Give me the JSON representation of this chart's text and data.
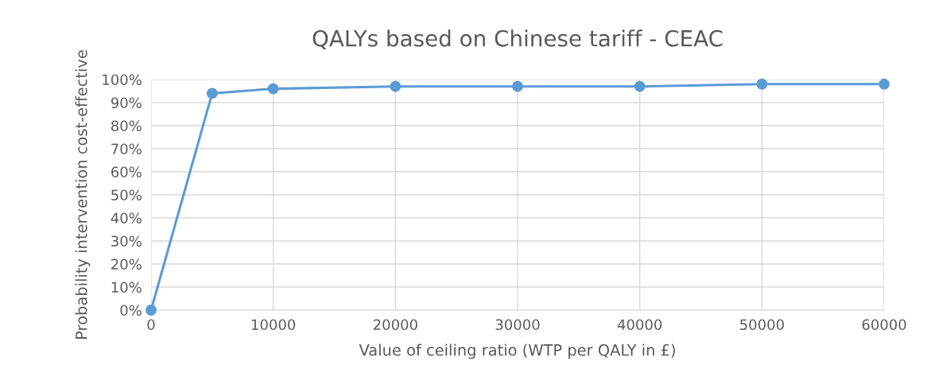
{
  "chart_data": {
    "type": "line",
    "title": "QALYs based on Chinese tariff - CEAC",
    "xlabel": "Value of ceiling ratio (WTP per QALY in £)",
    "ylabel": "Probability intervention cost-effective",
    "x": [
      0,
      5000,
      10000,
      20000,
      30000,
      40000,
      50000,
      60000
    ],
    "series": [
      {
        "color": "#5b9bd5",
        "values": [
          0,
          94,
          96,
          97,
          97,
          97,
          98,
          98
        ]
      }
    ],
    "xlim": [
      0,
      60000
    ],
    "xticks": [
      0,
      10000,
      20000,
      30000,
      40000,
      50000,
      60000
    ],
    "ylim": [
      0,
      100
    ],
    "yticks": [
      {
        "value": 0,
        "label": "0%"
      },
      {
        "value": 10,
        "label": "10%"
      },
      {
        "value": 20,
        "label": "20%"
      },
      {
        "value": 30,
        "label": "30%"
      },
      {
        "value": 40,
        "label": "40%"
      },
      {
        "value": 50,
        "label": "50%"
      },
      {
        "value": 60,
        "label": "60%"
      },
      {
        "value": 70,
        "label": "70%"
      },
      {
        "value": 80,
        "label": "80%"
      },
      {
        "value": 90,
        "label": "90%"
      },
      {
        "value": 100,
        "label": "100%"
      }
    ],
    "grid": true,
    "marker": "circle",
    "line_style": "solid"
  }
}
